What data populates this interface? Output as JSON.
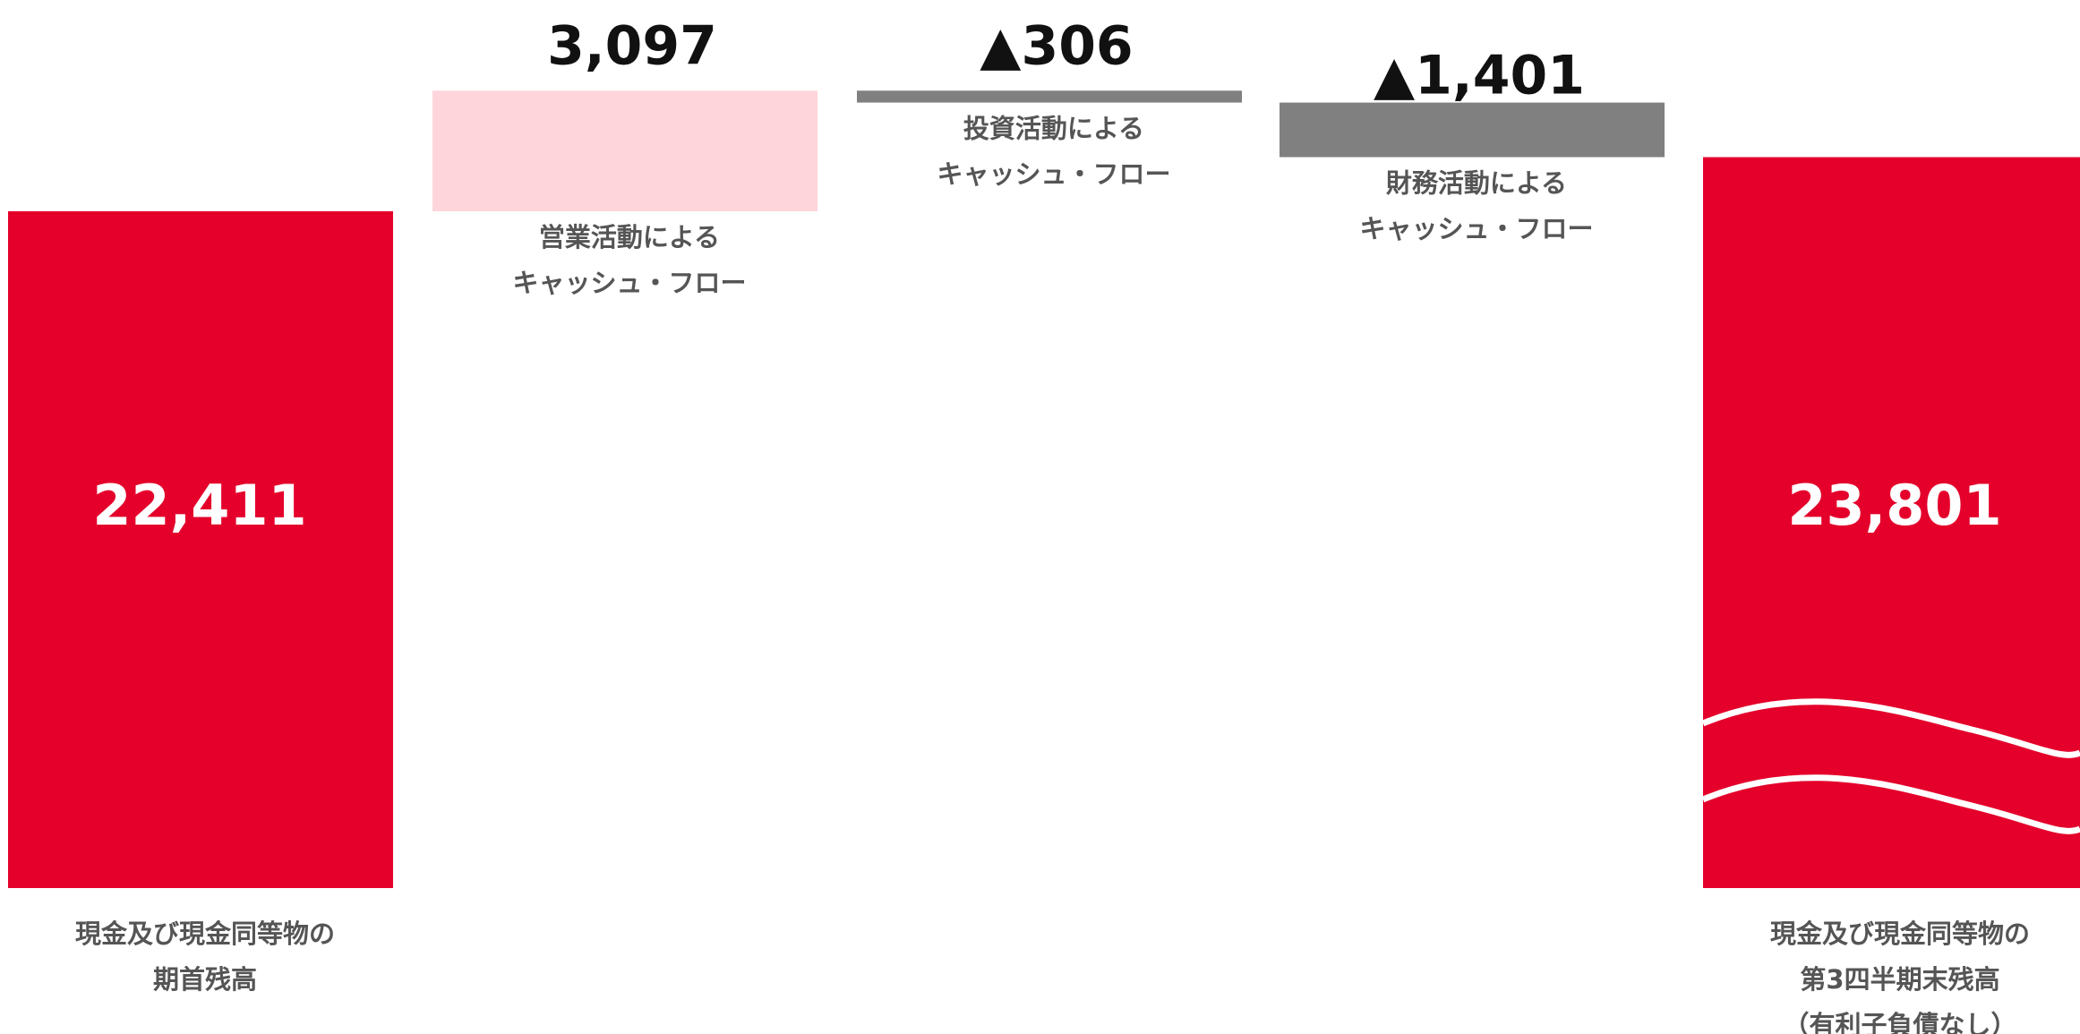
{
  "chart_data": {
    "type": "bar",
    "subtype": "waterfall",
    "categories": [
      [
        "現金及び現金同等物の",
        "期首残高"
      ],
      [
        "営業活動による",
        "キャッシュ・フロー"
      ],
      [
        "投資活動による",
        "キャッシュ・フロー"
      ],
      [
        "財務活動による",
        "キャッシュ・フロー"
      ],
      [
        "現金及び現金同等物の",
        "第3四半期末残高",
        "（有利子負債なし）"
      ]
    ],
    "values": [
      22411,
      3097,
      -306,
      -1401,
      23801
    ],
    "value_labels": [
      "22,411",
      "3,097",
      "▲306",
      "▲1,401",
      "23,801"
    ],
    "kinds": [
      "total",
      "increase",
      "decrease",
      "decrease",
      "total"
    ],
    "colors": {
      "total": "#e4002b",
      "increase": "#ffd5dc",
      "decrease": "#808080",
      "wave": "#ffffff"
    },
    "axis_broken": true,
    "grid": false,
    "legend": "none"
  }
}
